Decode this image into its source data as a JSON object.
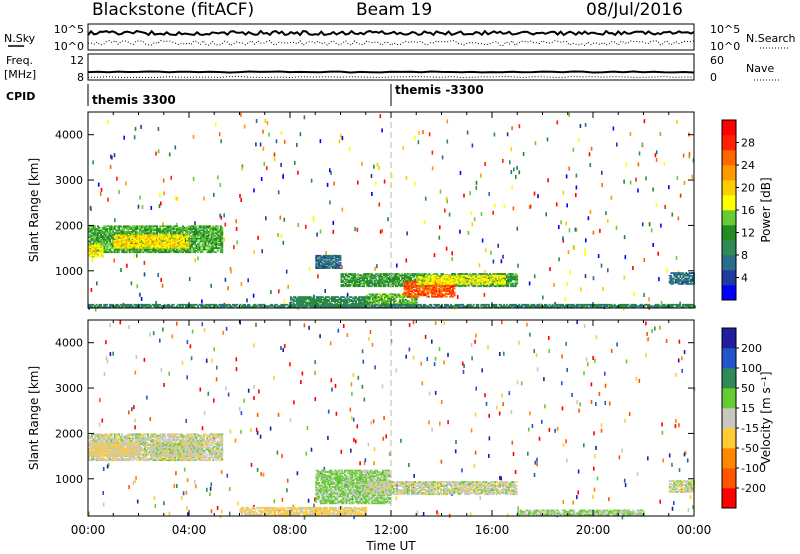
{
  "header": {
    "station": "Blackstone (fitACF)",
    "beam": "Beam 19",
    "date": "08/Jul/2016"
  },
  "strip_labels": {
    "nsky": "N.Sky",
    "nsearch": "N.Search",
    "freq_line1": "Freq.",
    "freq_line2": "[MHz]",
    "nave": "Nave",
    "cpid": "CPID",
    "nsky_ticks": [
      "10^5",
      "10^0"
    ],
    "nsearch_ticks": [
      "10^5",
      "10^0"
    ],
    "freq_ticks": [
      "12",
      "8"
    ],
    "nave_ticks": [
      "60",
      "0"
    ],
    "cpid_segments": [
      {
        "label": "themis 3300",
        "start_hour": 0
      },
      {
        "label": "themis -3300",
        "start_hour": 12
      }
    ]
  },
  "chart_data": [
    {
      "type": "heatmap",
      "panel": "power",
      "ylabel": "Slant Range [km]",
      "xlabel": "Time UT",
      "x_ticks": [
        "00:00",
        "04:00",
        "08:00",
        "12:00",
        "16:00",
        "20:00",
        "00:00"
      ],
      "x_range_hours": [
        0,
        24
      ],
      "y_ticks": [
        1000,
        2000,
        3000,
        4000
      ],
      "y_range_km": [
        180,
        4500
      ],
      "colorbar": {
        "label": "Power [dB]",
        "ticks": [
          "4",
          "8",
          "12",
          "16",
          "20",
          "24",
          "28"
        ],
        "range": [
          0,
          32
        ],
        "colors": [
          "#0000ff",
          "#1e3ca0",
          "#2a6e8c",
          "#2e8b57",
          "#228b22",
          "#66cc33",
          "#ffff00",
          "#ffcc00",
          "#ff9900",
          "#ff6600",
          "#ff2200",
          "#ff0000"
        ]
      },
      "regions": [
        {
          "t0": 0.0,
          "t1": 5.3,
          "r0": 1400,
          "r1": 2000,
          "v": 13
        },
        {
          "t0": 1.0,
          "t1": 4.0,
          "r0": 1500,
          "r1": 1800,
          "v": 19
        },
        {
          "t0": 0.0,
          "t1": 0.6,
          "r0": 1300,
          "r1": 1600,
          "v": 18
        },
        {
          "t0": 8.0,
          "t1": 11.0,
          "r0": 200,
          "r1": 420,
          "v": 10
        },
        {
          "t0": 11.0,
          "t1": 13.0,
          "r0": 230,
          "r1": 500,
          "v": 14
        },
        {
          "t0": 10.0,
          "t1": 17.0,
          "r0": 650,
          "r1": 950,
          "v": 12
        },
        {
          "t0": 12.5,
          "t1": 14.5,
          "r0": 420,
          "r1": 760,
          "v": 26
        },
        {
          "t0": 13.0,
          "t1": 16.5,
          "r0": 700,
          "r1": 900,
          "v": 18
        },
        {
          "t0": 9.0,
          "t1": 10.0,
          "r0": 1050,
          "r1": 1350,
          "v": 7
        },
        {
          "t0": 23.0,
          "t1": 24.0,
          "r0": 700,
          "r1": 950,
          "v": 7
        },
        {
          "t0": 0.0,
          "t1": 24.0,
          "r0": 180,
          "r1": 260,
          "v": 9
        }
      ]
    },
    {
      "type": "heatmap",
      "panel": "velocity",
      "ylabel": "Slant Range [km]",
      "xlabel": "Time UT",
      "x_ticks": [
        "00:00",
        "04:00",
        "08:00",
        "12:00",
        "16:00",
        "20:00",
        "00:00"
      ],
      "x_range_hours": [
        0,
        24
      ],
      "y_ticks": [
        1000,
        2000,
        3000,
        4000
      ],
      "y_range_km": [
        180,
        4500
      ],
      "colorbar": {
        "label": "Velocity [m s⁻¹]",
        "ticks": [
          "200",
          "100",
          "50",
          "15",
          "-15",
          "-50",
          "-100",
          "-200"
        ],
        "range": [
          -250,
          250
        ],
        "colors": [
          "#1e1e9e",
          "#2255cc",
          "#2e8b57",
          "#66cc33",
          "#c8c8c0",
          "#ffcc33",
          "#ff8800",
          "#ff5500",
          "#ff0000"
        ]
      },
      "regions": [
        {
          "t0": 0.0,
          "t1": 5.3,
          "r0": 1400,
          "r1": 2000,
          "v": 0
        },
        {
          "t0": 0.0,
          "t1": 2.0,
          "r0": 1500,
          "r1": 1800,
          "v": -30
        },
        {
          "t0": 2.5,
          "t1": 4.5,
          "r0": 1500,
          "r1": 1800,
          "v": 0
        },
        {
          "t0": 6.0,
          "t1": 11.0,
          "r0": 200,
          "r1": 380,
          "v": -40
        },
        {
          "t0": 9.0,
          "t1": 12.0,
          "r0": 450,
          "r1": 1200,
          "v": 40
        },
        {
          "t0": 11.0,
          "t1": 17.0,
          "r0": 650,
          "r1": 950,
          "v": 0
        },
        {
          "t0": 17.0,
          "t1": 22.0,
          "r0": 200,
          "r1": 300,
          "v": 30
        },
        {
          "t0": 23.0,
          "t1": 24.0,
          "r0": 700,
          "r1": 950,
          "v": 0
        }
      ]
    }
  ]
}
